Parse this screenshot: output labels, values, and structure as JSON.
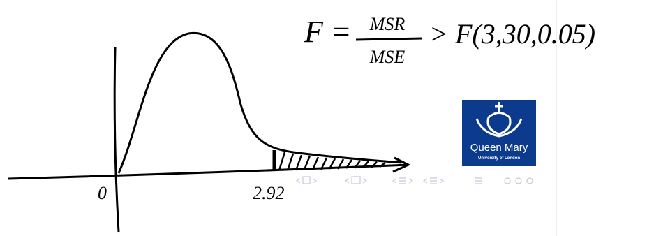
{
  "formula": {
    "lhs": "F =",
    "numerator": "MSR",
    "denominator": "MSE",
    "rhs": "> F(3,30,0.05)"
  },
  "axis_labels": [
    "0",
    "2.92"
  ],
  "logo": {
    "name": "Queen Mary",
    "subtitle": "University of London"
  }
}
